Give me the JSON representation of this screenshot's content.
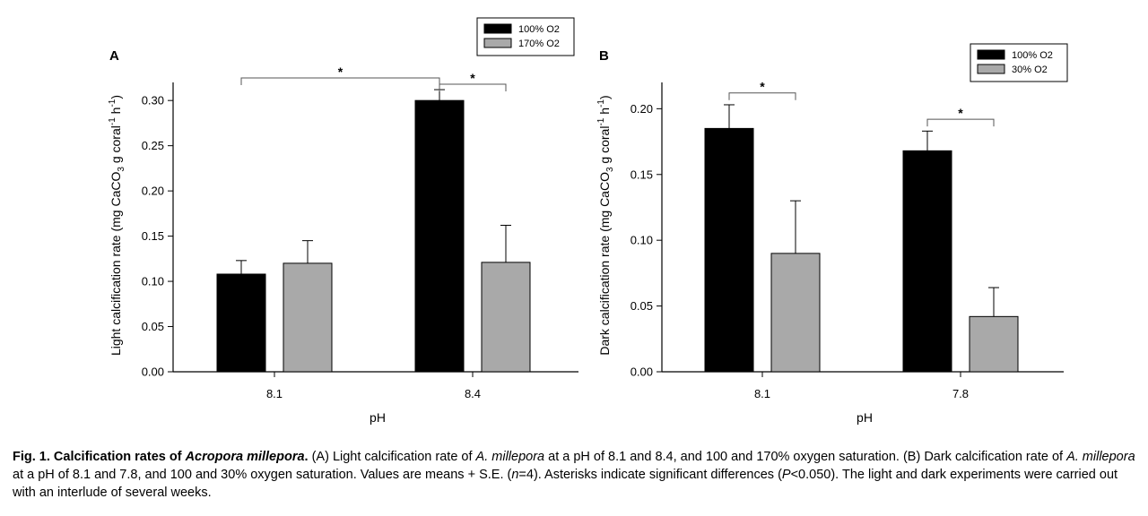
{
  "chart_data": [
    {
      "panel_label": "A",
      "type": "bar",
      "categories": [
        "8.1",
        "8.4"
      ],
      "series": [
        {
          "name": "100% O2",
          "color": "#000000",
          "values": [
            0.108,
            0.3
          ],
          "errors": [
            0.015,
            0.012
          ]
        },
        {
          "name": "170% O2",
          "color": "#a9a9a9",
          "values": [
            0.12,
            0.121
          ],
          "errors": [
            0.025,
            0.041
          ]
        }
      ],
      "xlabel": "pH",
      "ylabel_parts": [
        "Light calcification rate (mg CaCO",
        "3",
        " g coral",
        "-1",
        " h",
        "-1",
        ")"
      ],
      "ylim": [
        0,
        0.32
      ],
      "yticks": [
        "0.00",
        "0.05",
        "0.10",
        "0.15",
        "0.20",
        "0.25",
        "0.30"
      ],
      "legend": [
        "100% O2",
        "170% O2"
      ],
      "legend_position": "top-right",
      "significance": [
        {
          "from_category": 0,
          "from_series": 0,
          "to_category": 1,
          "to_series": 0,
          "level": 0.325,
          "mark": "*"
        },
        {
          "from_category": 1,
          "from_series": 0,
          "to_category": 1,
          "to_series": 1,
          "level": 0.318,
          "mark": "*"
        }
      ]
    },
    {
      "panel_label": "B",
      "type": "bar",
      "categories": [
        "8.1",
        "7.8"
      ],
      "series": [
        {
          "name": "100% O2",
          "color": "#000000",
          "values": [
            0.185,
            0.168
          ],
          "errors": [
            0.018,
            0.015
          ]
        },
        {
          "name": "30% O2",
          "color": "#a9a9a9",
          "values": [
            0.09,
            0.042
          ],
          "errors": [
            0.04,
            0.022
          ]
        }
      ],
      "xlabel": "pH",
      "ylabel_parts": [
        "Dark calcification rate (mg CaCO",
        "3",
        " g coral",
        "-1",
        " h",
        "-1",
        ")"
      ],
      "ylim": [
        0,
        0.22
      ],
      "yticks": [
        "0.00",
        "0.05",
        "0.10",
        "0.15",
        "0.20"
      ],
      "legend": [
        "100% O2",
        "30% O2"
      ],
      "legend_position": "top-right",
      "significance": [
        {
          "from_category": 0,
          "from_series": 0,
          "to_category": 0,
          "to_series": 1,
          "level": 0.212,
          "mark": "*"
        },
        {
          "from_category": 1,
          "from_series": 0,
          "to_category": 1,
          "to_series": 1,
          "level": 0.192,
          "mark": "*"
        }
      ]
    }
  ],
  "caption": {
    "lead": "Fig. 1. Calcification rates of ",
    "lead_italic": "Acropora millepora",
    "lead_end": ".",
    "s1": " (A) Light calcification rate of ",
    "i1": "A. millepora",
    "s2": " at a pH of 8.1 and 8.4, and 100 and 170% oxygen saturation. (B) Dark calcification rate of ",
    "i2": "A. millepora",
    "s3": " at a pH of 8.1 and 7.8, and 100 and 30% oxygen saturation. Values are means + S.E. (",
    "i3": "n",
    "s4": "=4). Asterisks indicate significant differences (",
    "i4": "P",
    "s5": "<0.050). The light and dark experiments were carried out with an interlude of several weeks."
  }
}
